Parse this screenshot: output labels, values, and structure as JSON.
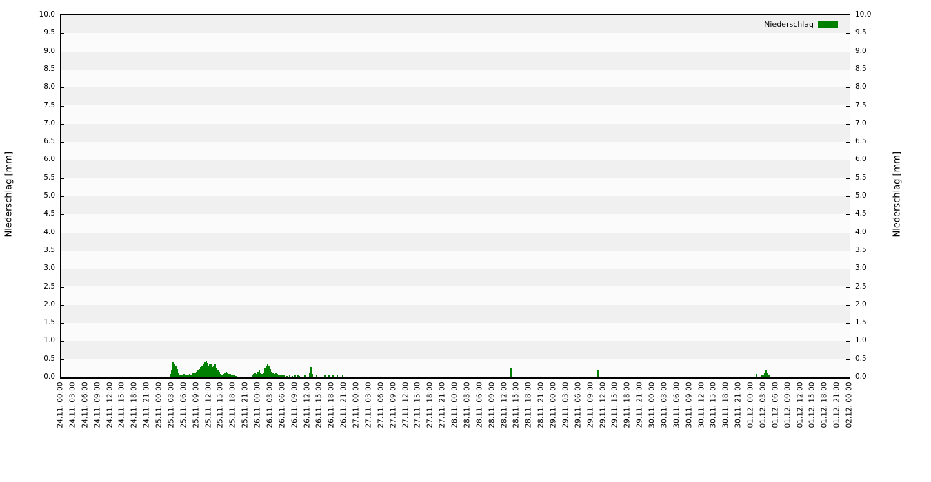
{
  "chart_data": {
    "type": "bar",
    "title": "",
    "ylabel_left": "Niederschlag [mm]",
    "ylabel_right": "Niederschlag [mm]",
    "legend": {
      "label": "Niederschlag",
      "position": "top-right-inside"
    },
    "ylim": [
      0.0,
      10.0
    ],
    "ytick_step": 0.5,
    "ytick_labels": [
      "0.0",
      "0.5",
      "1.0",
      "1.5",
      "2.0",
      "2.5",
      "3.0",
      "3.5",
      "4.0",
      "4.5",
      "5.0",
      "5.5",
      "6.0",
      "6.5",
      "7.0",
      "7.5",
      "8.0",
      "8.5",
      "9.0",
      "9.5",
      "10.0"
    ],
    "x_start": "24.11. 00:00",
    "x_end": "02.12. 00:00",
    "xtick_interval_hours": 3,
    "xtick_labels": [
      "24.11. 00:00",
      "24.11. 03:00",
      "24.11. 06:00",
      "24.11. 09:00",
      "24.11. 12:00",
      "24.11. 15:00",
      "24.11. 18:00",
      "24.11. 21:00",
      "25.11. 00:00",
      "25.11. 03:00",
      "25.11. 06:00",
      "25.11. 09:00",
      "25.11. 12:00",
      "25.11. 15:00",
      "25.11. 18:00",
      "25.11. 21:00",
      "26.11. 00:00",
      "26.11. 03:00",
      "26.11. 06:00",
      "26.11. 09:00",
      "26.11. 12:00",
      "26.11. 15:00",
      "26.11. 18:00",
      "26.11. 21:00",
      "27.11. 00:00",
      "27.11. 03:00",
      "27.11. 06:00",
      "27.11. 09:00",
      "27.11. 12:00",
      "27.11. 15:00",
      "27.11. 18:00",
      "27.11. 21:00",
      "28.11. 00:00",
      "28.11. 03:00",
      "28.11. 06:00",
      "28.11. 09:00",
      "28.11. 12:00",
      "28.11. 15:00",
      "28.11. 18:00",
      "28.11. 21:00",
      "29.11. 00:00",
      "29.11. 03:00",
      "29.11. 06:00",
      "29.11. 09:00",
      "29.11. 12:00",
      "29.11. 15:00",
      "29.11. 18:00",
      "29.11. 21:00",
      "30.11. 00:00",
      "30.11. 03:00",
      "30.11. 06:00",
      "30.11. 09:00",
      "30.11. 12:00",
      "30.11. 15:00",
      "30.11. 18:00",
      "30.11. 21:00",
      "01.12. 00:00",
      "01.12. 03:00",
      "01.12. 06:00",
      "01.12. 09:00",
      "01.12. 12:00",
      "01.12. 15:00",
      "01.12. 18:00",
      "01.12. 21:00",
      "02.12. 00:00"
    ],
    "bar_width_minutes": 20,
    "grid": "alternating-horizontal-bands",
    "colors": {
      "bar": "#008000",
      "stripe_dark": "#f0f0f0",
      "stripe_light": "#fbfbfb",
      "border": "#000000"
    },
    "bars": [
      [
        "25.11. 02:40",
        0.1
      ],
      [
        "25.11. 03:00",
        0.2
      ],
      [
        "25.11. 03:20",
        0.42
      ],
      [
        "25.11. 03:40",
        0.38
      ],
      [
        "25.11. 04:00",
        0.3
      ],
      [
        "25.11. 04:20",
        0.22
      ],
      [
        "25.11. 04:40",
        0.12
      ],
      [
        "25.11. 05:00",
        0.07
      ],
      [
        "25.11. 05:20",
        0.06
      ],
      [
        "25.11. 05:40",
        0.08
      ],
      [
        "25.11. 06:00",
        0.1
      ],
      [
        "25.11. 06:20",
        0.07
      ],
      [
        "25.11. 06:40",
        0.06
      ],
      [
        "25.11. 07:00",
        0.08
      ],
      [
        "25.11. 07:20",
        0.1
      ],
      [
        "25.11. 07:40",
        0.08
      ],
      [
        "25.11. 08:00",
        0.12
      ],
      [
        "25.11. 08:20",
        0.14
      ],
      [
        "25.11. 08:40",
        0.13
      ],
      [
        "25.11. 09:00",
        0.16
      ],
      [
        "25.11. 09:20",
        0.2
      ],
      [
        "25.11. 09:40",
        0.22
      ],
      [
        "25.11. 10:00",
        0.28
      ],
      [
        "25.11. 10:20",
        0.33
      ],
      [
        "25.11. 10:40",
        0.38
      ],
      [
        "25.11. 11:00",
        0.42
      ],
      [
        "25.11. 11:20",
        0.46
      ],
      [
        "25.11. 11:40",
        0.4
      ],
      [
        "25.11. 12:00",
        0.33
      ],
      [
        "25.11. 12:20",
        0.38
      ],
      [
        "25.11. 12:40",
        0.36
      ],
      [
        "25.11. 13:00",
        0.28
      ],
      [
        "25.11. 13:20",
        0.3
      ],
      [
        "25.11. 13:40",
        0.36
      ],
      [
        "25.11. 14:00",
        0.25
      ],
      [
        "25.11. 14:20",
        0.2
      ],
      [
        "25.11. 14:40",
        0.15
      ],
      [
        "25.11. 15:00",
        0.1
      ],
      [
        "25.11. 15:20",
        0.08
      ],
      [
        "25.11. 15:40",
        0.1
      ],
      [
        "25.11. 16:00",
        0.14
      ],
      [
        "25.11. 16:20",
        0.15
      ],
      [
        "25.11. 16:40",
        0.12
      ],
      [
        "25.11. 17:00",
        0.1
      ],
      [
        "25.11. 17:20",
        0.1
      ],
      [
        "25.11. 17:40",
        0.08
      ],
      [
        "25.11. 18:00",
        0.06
      ],
      [
        "25.11. 18:20",
        0.05
      ],
      [
        "25.11. 18:40",
        0.04
      ],
      [
        "25.11. 22:40",
        0.06
      ],
      [
        "25.11. 23:00",
        0.1
      ],
      [
        "25.11. 23:20",
        0.12
      ],
      [
        "25.11. 23:40",
        0.1
      ],
      [
        "26.11. 00:00",
        0.15
      ],
      [
        "26.11. 00:20",
        0.2
      ],
      [
        "26.11. 00:40",
        0.12
      ],
      [
        "26.11. 01:00",
        0.1
      ],
      [
        "26.11. 01:20",
        0.14
      ],
      [
        "26.11. 01:40",
        0.25
      ],
      [
        "26.11. 02:00",
        0.3
      ],
      [
        "26.11. 02:20",
        0.36
      ],
      [
        "26.11. 02:40",
        0.3
      ],
      [
        "26.11. 03:00",
        0.22
      ],
      [
        "26.11. 03:20",
        0.16
      ],
      [
        "26.11. 03:40",
        0.12
      ],
      [
        "26.11. 04:00",
        0.1
      ],
      [
        "26.11. 04:20",
        0.13
      ],
      [
        "26.11. 04:40",
        0.1
      ],
      [
        "26.11. 05:00",
        0.08
      ],
      [
        "26.11. 05:20",
        0.06
      ],
      [
        "26.11. 05:40",
        0.05
      ],
      [
        "26.11. 06:00",
        0.06
      ],
      [
        "26.11. 06:20",
        0.05
      ],
      [
        "26.11. 07:00",
        0.04
      ],
      [
        "26.11. 07:40",
        0.05
      ],
      [
        "26.11. 08:20",
        0.04
      ],
      [
        "26.11. 09:00",
        0.05
      ],
      [
        "26.11. 09:40",
        0.06
      ],
      [
        "26.11. 10:00",
        0.04
      ],
      [
        "26.11. 11:20",
        0.05
      ],
      [
        "26.11. 12:40",
        0.13
      ],
      [
        "26.11. 13:00",
        0.28
      ],
      [
        "26.11. 13:20",
        0.1
      ],
      [
        "26.11. 14:20",
        0.05
      ],
      [
        "26.11. 16:20",
        0.05
      ],
      [
        "26.11. 17:20",
        0.05
      ],
      [
        "26.11. 18:20",
        0.05
      ],
      [
        "26.11. 19:20",
        0.05
      ],
      [
        "26.11. 20:40",
        0.05
      ],
      [
        "28.11. 13:40",
        0.27
      ],
      [
        "29.11. 10:40",
        0.21
      ],
      [
        "01.12. 01:20",
        0.09
      ],
      [
        "01.12. 02:40",
        0.06
      ],
      [
        "01.12. 03:00",
        0.08
      ],
      [
        "01.12. 03:20",
        0.12
      ],
      [
        "01.12. 03:40",
        0.19
      ],
      [
        "01.12. 04:00",
        0.13
      ],
      [
        "01.12. 04:20",
        0.06
      ]
    ]
  }
}
